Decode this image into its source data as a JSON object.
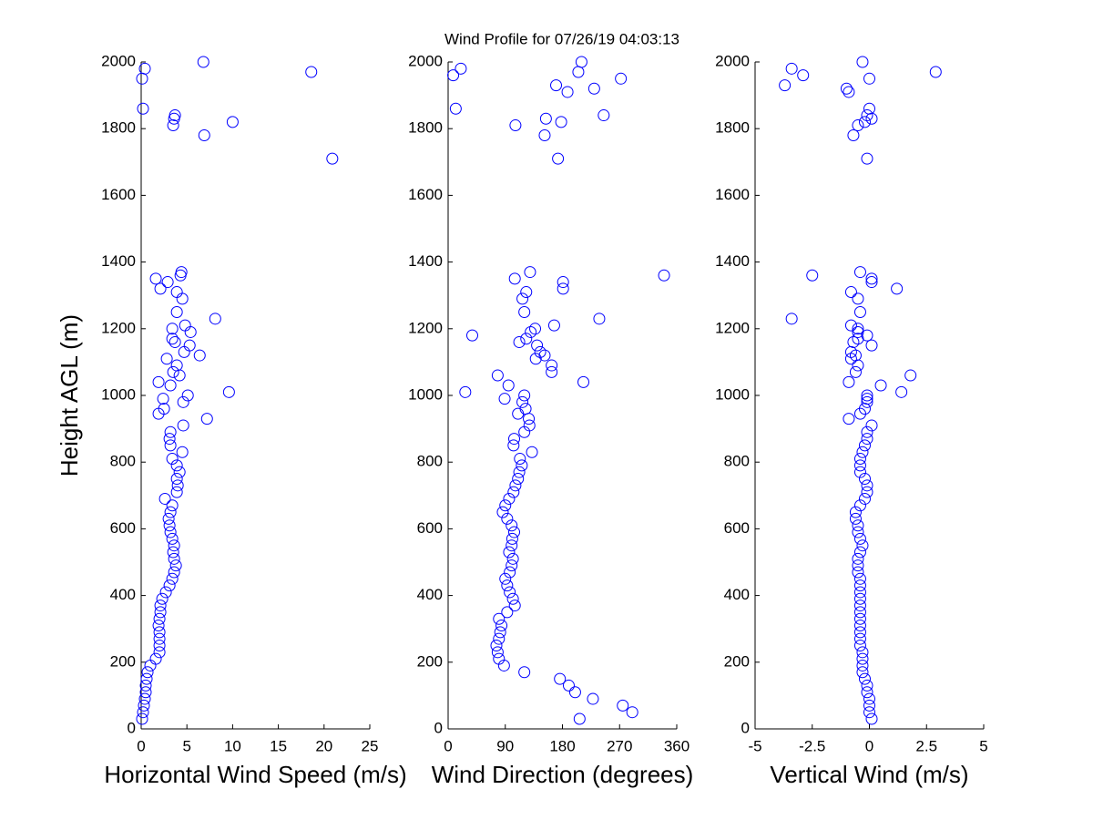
{
  "title": "Wind Profile for  07/26/19 04:03:13",
  "chart_data": [
    {
      "type": "scatter",
      "xlabel": "Horizontal Wind Speed (m/s)",
      "ylabel": "Height AGL (m)",
      "color": "#0000ff",
      "xlim": [
        0,
        25
      ],
      "xticks": [
        0,
        5,
        10,
        15,
        20,
        25
      ],
      "ylim": [
        0,
        2000
      ],
      "yticks": [
        0,
        200,
        400,
        600,
        800,
        1000,
        1200,
        1400,
        1600,
        1800,
        2000
      ],
      "x": [
        0.1,
        0.2,
        0.3,
        0.4,
        0.5,
        0.5,
        0.6,
        0.7,
        1.0,
        1.6,
        2.0,
        2.0,
        2.0,
        2.0,
        1.9,
        2.0,
        2.1,
        2.1,
        2.3,
        2.7,
        3.1,
        3.4,
        3.6,
        3.8,
        3.6,
        3.5,
        3.6,
        3.4,
        3.2,
        3.1,
        3.0,
        3.2,
        3.4,
        2.6,
        3.9,
        4.0,
        3.9,
        4.2,
        3.9,
        3.4,
        4.5,
        3.2,
        3.1,
        3.2,
        4.6,
        7.2,
        1.9,
        2.5,
        4.6,
        2.4,
        5.1,
        9.6,
        3.2,
        1.9,
        4.2,
        3.5,
        3.9,
        2.8,
        6.4,
        4.7,
        5.3,
        3.7,
        3.4,
        5.4,
        3.4,
        4.8,
        8.1,
        3.9,
        4.5,
        3.9,
        2.1,
        2.9,
        1.6,
        4.3,
        4.4,
        20.9,
        6.9,
        3.5,
        10.0,
        3.6,
        3.7,
        0.2,
        0.1,
        18.6,
        0.4,
        6.8
      ],
      "y": [
        30,
        50,
        70,
        90,
        110,
        130,
        150,
        170,
        190,
        210,
        230,
        250,
        270,
        290,
        310,
        330,
        350,
        370,
        390,
        410,
        430,
        450,
        470,
        490,
        510,
        530,
        550,
        570,
        590,
        610,
        630,
        650,
        670,
        690,
        710,
        730,
        750,
        770,
        790,
        810,
        830,
        850,
        870,
        890,
        910,
        930,
        945,
        960,
        980,
        990,
        1000,
        1010,
        1030,
        1040,
        1060,
        1070,
        1090,
        1110,
        1120,
        1130,
        1150,
        1160,
        1170,
        1190,
        1200,
        1210,
        1230,
        1250,
        1290,
        1310,
        1320,
        1340,
        1350,
        1360,
        1370,
        1710,
        1780,
        1810,
        1820,
        1830,
        1840,
        1860,
        1950,
        1970,
        1980,
        2000
      ]
    },
    {
      "type": "scatter",
      "xlabel": "Wind Direction (degrees)",
      "color": "#0000ff",
      "xlim": [
        0,
        360
      ],
      "xticks": [
        0,
        90,
        180,
        270,
        360
      ],
      "ylim": [
        0,
        2000
      ],
      "yticks": [
        0,
        200,
        400,
        600,
        800,
        1000,
        1200,
        1400,
        1600,
        1800,
        2000
      ],
      "x": [
        207,
        290,
        275,
        228,
        200,
        190,
        176,
        120,
        88,
        80,
        78,
        76,
        80,
        82,
        84,
        80,
        93,
        105,
        102,
        97,
        93,
        90,
        97,
        100,
        102,
        96,
        100,
        101,
        104,
        100,
        93,
        86,
        90,
        96,
        103,
        106,
        110,
        112,
        116,
        113,
        132,
        103,
        104,
        120,
        128,
        127,
        110,
        122,
        117,
        89,
        120,
        27,
        95,
        213,
        78,
        163,
        163,
        138,
        152,
        145,
        140,
        112,
        123,
        38,
        130,
        137,
        167,
        238,
        120,
        117,
        123,
        181,
        181,
        105,
        340,
        129,
        173,
        152,
        106,
        178,
        154,
        245,
        12,
        188,
        230,
        170,
        272,
        8,
        205,
        20,
        210
      ],
      "y": [
        30,
        50,
        70,
        90,
        110,
        130,
        150,
        170,
        190,
        210,
        230,
        250,
        270,
        290,
        310,
        330,
        350,
        370,
        390,
        410,
        430,
        450,
        470,
        490,
        510,
        530,
        550,
        570,
        590,
        610,
        630,
        650,
        670,
        690,
        710,
        730,
        750,
        770,
        790,
        810,
        830,
        850,
        870,
        890,
        910,
        930,
        945,
        960,
        980,
        990,
        1000,
        1010,
        1030,
        1040,
        1060,
        1070,
        1090,
        1110,
        1120,
        1130,
        1150,
        1160,
        1170,
        1180,
        1190,
        1200,
        1210,
        1230,
        1250,
        1290,
        1310,
        1320,
        1340,
        1350,
        1360,
        1370,
        1710,
        1780,
        1810,
        1820,
        1830,
        1840,
        1860,
        1910,
        1920,
        1930,
        1950,
        1960,
        1970,
        1980,
        2000
      ]
    },
    {
      "type": "scatter",
      "xlabel": "Vertical Wind (m/s)",
      "color": "#0000ff",
      "xlim": [
        -5,
        5
      ],
      "xticks": [
        -5,
        -2.5,
        0,
        2.5,
        5
      ],
      "ylim": [
        0,
        2000
      ],
      "yticks": [
        0,
        200,
        400,
        600,
        800,
        1000,
        1200,
        1400,
        1600,
        1800,
        2000
      ],
      "x": [
        0.1,
        0.0,
        0.0,
        0.0,
        -0.1,
        -0.1,
        -0.2,
        -0.3,
        -0.3,
        -0.3,
        -0.3,
        -0.4,
        -0.4,
        -0.4,
        -0.4,
        -0.4,
        -0.4,
        -0.4,
        -0.4,
        -0.4,
        -0.4,
        -0.4,
        -0.5,
        -0.5,
        -0.5,
        -0.4,
        -0.3,
        -0.4,
        -0.5,
        -0.5,
        -0.6,
        -0.6,
        -0.4,
        -0.2,
        -0.1,
        -0.1,
        -0.2,
        -0.4,
        -0.4,
        -0.4,
        -0.3,
        -0.2,
        -0.1,
        -0.1,
        0.1,
        -0.9,
        -0.4,
        -0.2,
        -0.1,
        -0.1,
        -0.1,
        1.4,
        0.5,
        -0.9,
        1.8,
        -0.6,
        -0.5,
        -0.8,
        -0.6,
        -0.8,
        0.1,
        -0.7,
        -0.5,
        -0.1,
        -0.5,
        -0.5,
        -0.8,
        -3.4,
        -0.4,
        -0.5,
        -0.8,
        1.2,
        0.1,
        0.1,
        -2.5,
        -0.4,
        -0.1,
        -0.7,
        -0.5,
        -0.2,
        0.1,
        -0.1,
        0.0,
        -0.9,
        -1.0,
        -3.7,
        0.0,
        -2.9,
        2.9,
        -3.4,
        -0.3
      ],
      "y": [
        30,
        50,
        70,
        90,
        110,
        130,
        150,
        170,
        190,
        210,
        230,
        250,
        270,
        290,
        310,
        330,
        350,
        370,
        390,
        410,
        430,
        450,
        470,
        490,
        510,
        530,
        550,
        570,
        590,
        610,
        630,
        650,
        670,
        690,
        710,
        730,
        750,
        770,
        790,
        810,
        830,
        850,
        870,
        890,
        910,
        930,
        945,
        960,
        980,
        990,
        1000,
        1010,
        1030,
        1040,
        1060,
        1070,
        1090,
        1110,
        1120,
        1130,
        1150,
        1160,
        1170,
        1180,
        1190,
        1200,
        1210,
        1230,
        1250,
        1290,
        1310,
        1320,
        1340,
        1350,
        1360,
        1370,
        1710,
        1780,
        1810,
        1820,
        1830,
        1840,
        1860,
        1910,
        1920,
        1930,
        1950,
        1960,
        1970,
        1980,
        2000
      ]
    }
  ]
}
